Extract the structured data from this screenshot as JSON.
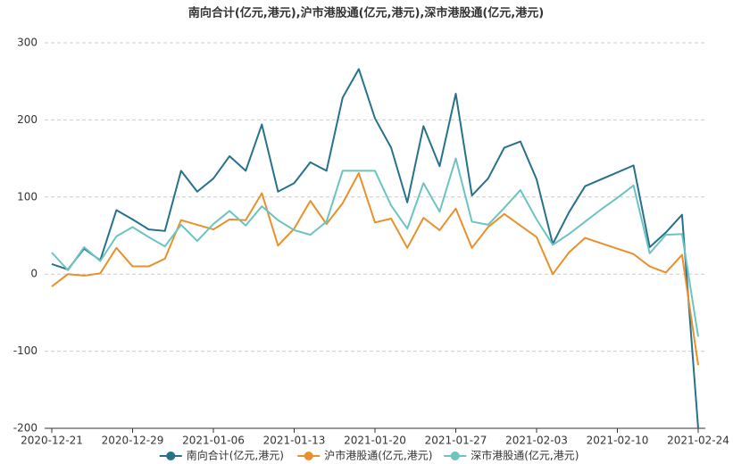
{
  "chart_data": {
    "type": "line",
    "title": "南向合计(亿元,港元),沪市港股通(亿元,港元),深市港股通(亿元,港元)",
    "categories": [
      "2020-12-21",
      null,
      null,
      null,
      null,
      "2020-12-29",
      null,
      null,
      null,
      null,
      "2021-01-06",
      null,
      null,
      null,
      null,
      "2021-01-13",
      null,
      null,
      null,
      null,
      "2021-01-20",
      null,
      null,
      null,
      null,
      "2021-01-27",
      null,
      null,
      null,
      null,
      "2021-02-03",
      null,
      null,
      null,
      null,
      "2021-02-10",
      null,
      null,
      null,
      null,
      "2021-02-24"
    ],
    "series": [
      {
        "name": "南向合计(亿元,港元)",
        "color": "#27728a",
        "values": [
          13,
          6,
          33,
          18,
          83,
          71,
          58,
          56,
          134,
          107,
          124,
          153,
          134,
          194,
          107,
          118,
          145,
          134,
          229,
          266,
          202,
          164,
          93,
          192,
          140,
          234,
          102,
          124,
          164,
          172,
          123,
          39,
          80,
          114,
          123,
          132,
          141,
          35,
          54,
          77,
          -200
        ]
      },
      {
        "name": "沪市港股通(亿元,港元)",
        "color": "#e8902c",
        "values": [
          -16,
          0,
          -2,
          1,
          34,
          10,
          10,
          20,
          70,
          64,
          58,
          71,
          70,
          105,
          37,
          59,
          95,
          65,
          92,
          131,
          67,
          72,
          34,
          73,
          57,
          85,
          34,
          61,
          78,
          63,
          48,
          0,
          28,
          47,
          40,
          33,
          26,
          10,
          2,
          25,
          -118
        ]
      },
      {
        "name": "深市港股通(亿元,港元)",
        "color": "#6cc4c0",
        "values": [
          28,
          5,
          35,
          17,
          49,
          61,
          48,
          36,
          64,
          43,
          65,
          82,
          63,
          88,
          70,
          57,
          51,
          68,
          134,
          134,
          134,
          89,
          59,
          118,
          81,
          150,
          68,
          64,
          86,
          109,
          71,
          38,
          52,
          68,
          84,
          99,
          115,
          27,
          51,
          52,
          -81
        ]
      }
    ],
    "ylim": [
      -200,
      300
    ],
    "yticks": [
      -200,
      -100,
      0,
      100,
      200,
      300
    ],
    "grid": true,
    "legend": "bottom"
  }
}
